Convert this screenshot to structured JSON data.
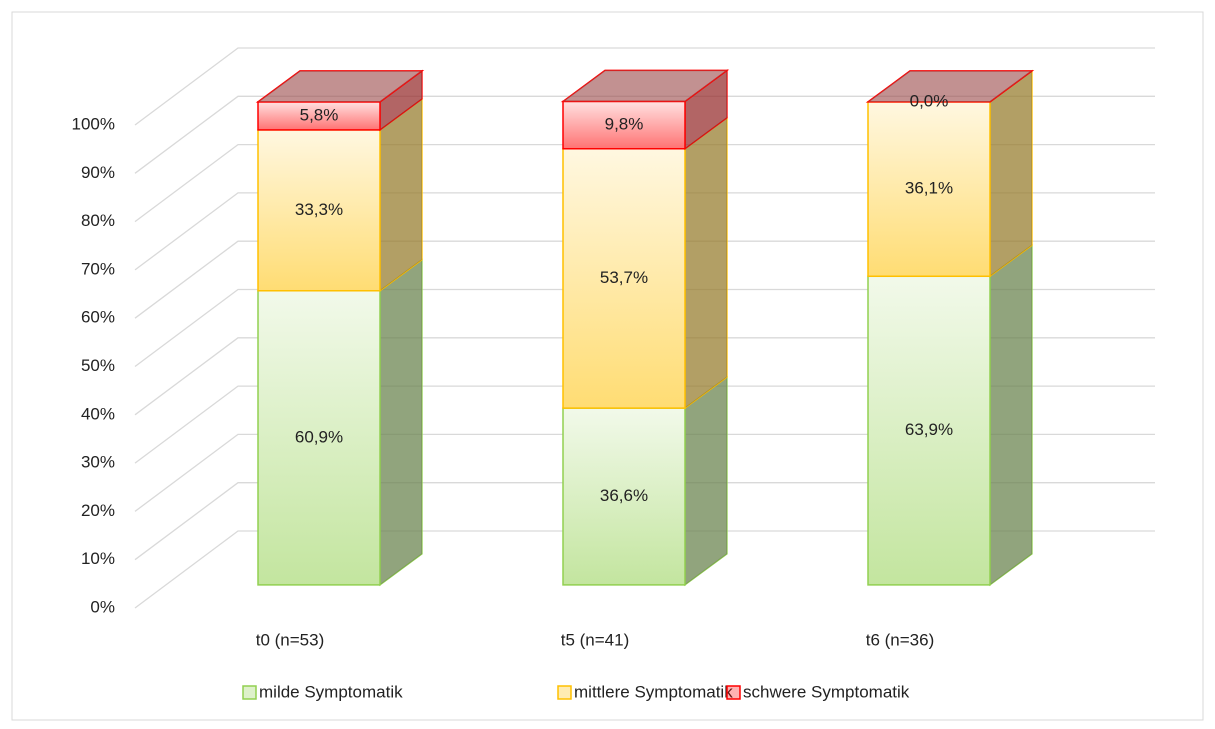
{
  "chart_data": {
    "type": "bar3d_stacked",
    "categories": [
      "t0 (n=53)",
      "t5 (n=41)",
      "t6 (n=36)"
    ],
    "series": [
      {
        "name": "milde Symptomatik",
        "color": "#92d050",
        "values": [
          60.9,
          36.6,
          63.9
        ],
        "value_labels": [
          "60,9%",
          "36,6%",
          "63,9%"
        ]
      },
      {
        "name": "mittlere Symptomatik",
        "color": "#ffc000",
        "values": [
          33.3,
          53.7,
          36.1
        ],
        "value_labels": [
          "33,3%",
          "53,7%",
          "36,1%"
        ]
      },
      {
        "name": "schwere Symptomatik",
        "color": "#ff0000",
        "values": [
          5.8,
          9.8,
          0.0
        ],
        "value_labels": [
          "5,8%",
          "9,8%",
          "0,0%"
        ]
      }
    ],
    "ylim": [
      0,
      100
    ],
    "yticks": [
      {
        "value": 0,
        "label": "0%"
      },
      {
        "value": 10,
        "label": "10%"
      },
      {
        "value": 20,
        "label": "20%"
      },
      {
        "value": 30,
        "label": "30%"
      },
      {
        "value": 40,
        "label": "40%"
      },
      {
        "value": 50,
        "label": "50%"
      },
      {
        "value": 60,
        "label": "60%"
      },
      {
        "value": 70,
        "label": "70%"
      },
      {
        "value": 80,
        "label": "80%"
      },
      {
        "value": 90,
        "label": "90%"
      },
      {
        "value": 100,
        "label": "100%"
      }
    ],
    "grid": true,
    "legend": "bottom"
  }
}
